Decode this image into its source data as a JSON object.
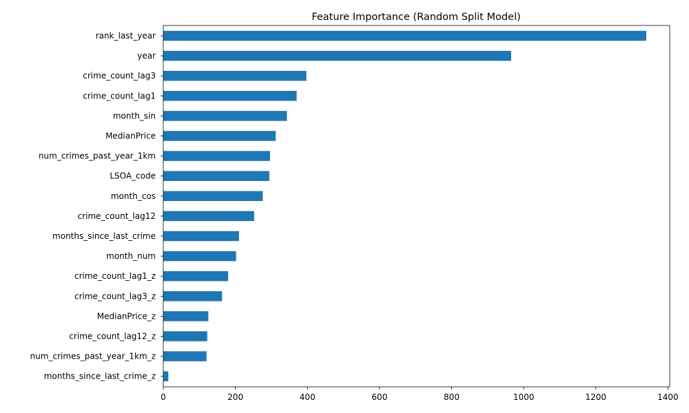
{
  "chart_data": {
    "type": "bar",
    "orientation": "horizontal",
    "title": "Feature Importance (Random Split Model)",
    "xlabel": "",
    "ylabel": "",
    "categories": [
      "rank_last_year",
      "year",
      "crime_count_lag3",
      "crime_count_lag1",
      "month_sin",
      "MedianPrice",
      "num_crimes_past_year_1km",
      "LSOA_code",
      "month_cos",
      "crime_count_lag12",
      "months_since_last_crime",
      "month_num",
      "crime_count_lag1_z",
      "crime_count_lag3_z",
      "MedianPrice_z",
      "crime_count_lag12_z",
      "num_crimes_past_year_1km_z",
      "months_since_last_crime_z"
    ],
    "values": [
      1340,
      965,
      397,
      370,
      343,
      312,
      296,
      294,
      276,
      252,
      210,
      202,
      180,
      163,
      125,
      122,
      120,
      14
    ],
    "xlim": [
      0,
      1405
    ],
    "xticks": [
      0,
      200,
      400,
      600,
      800,
      1000,
      1200,
      1400
    ],
    "bar_color": "#1f77b4",
    "grid": false,
    "legend": "none"
  }
}
